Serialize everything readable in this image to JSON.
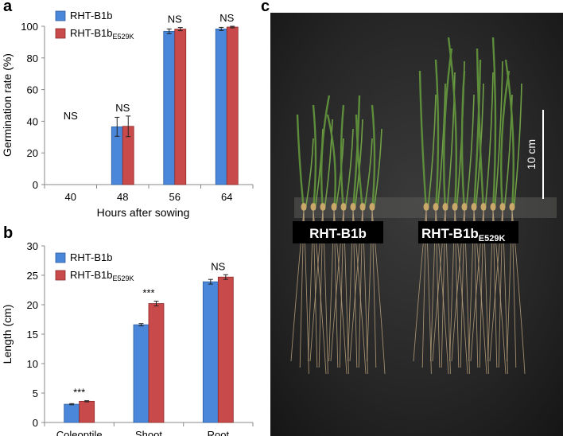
{
  "panels": {
    "a": "a",
    "b": "b",
    "c": "c"
  },
  "colors": {
    "blue": "#4a86d9",
    "red": "#c94a4a",
    "blue_edge": "#2f5f9f",
    "red_edge": "#8f2a2a"
  },
  "chart_data": [
    {
      "type": "bar",
      "panel": "a",
      "categories": [
        "40",
        "48",
        "56",
        "64"
      ],
      "series": [
        {
          "name": "RHT-B1b",
          "name_sub": "",
          "values": [
            0,
            36.5,
            96.8,
            98.3
          ],
          "errors": [
            0,
            6,
            1.5,
            1
          ]
        },
        {
          "name": "RHT-B1b",
          "name_sub": "E529K",
          "values": [
            0,
            36.8,
            98.2,
            99.5
          ],
          "errors": [
            0,
            6.5,
            1,
            0.5
          ]
        }
      ],
      "annotations": [
        "NS",
        "NS",
        "NS",
        "NS"
      ],
      "xlabel": "Hours after sowing",
      "ylabel": "Germination rate (%)",
      "ylim": [
        0,
        100
      ],
      "yticks": [
        0,
        20,
        40,
        60,
        80,
        100
      ],
      "legend": "top-left",
      "grid": false
    },
    {
      "type": "bar",
      "panel": "b",
      "categories": [
        "Coleoptile",
        "Shoot",
        "Root"
      ],
      "series": [
        {
          "name": "RHT-B1b",
          "name_sub": "",
          "values": [
            3.1,
            16.6,
            23.9
          ],
          "errors": [
            0.1,
            0.2,
            0.4
          ]
        },
        {
          "name": "RHT-B1b",
          "name_sub": "E529K",
          "values": [
            3.6,
            20.2,
            24.7
          ],
          "errors": [
            0.1,
            0.4,
            0.4
          ]
        }
      ],
      "annotations": [
        "***",
        "***",
        "NS"
      ],
      "xlabel": "",
      "ylabel": "Length (cm)",
      "ylim": [
        0,
        30
      ],
      "yticks": [
        0,
        5,
        10,
        15,
        20,
        25,
        30
      ],
      "legend": "top-left",
      "grid": false
    }
  ],
  "photo": {
    "label_left": "RHT-B1b",
    "label_right_main": "RHT-B1b",
    "label_right_sub": "E529K",
    "scale_bar": "10 cm"
  }
}
